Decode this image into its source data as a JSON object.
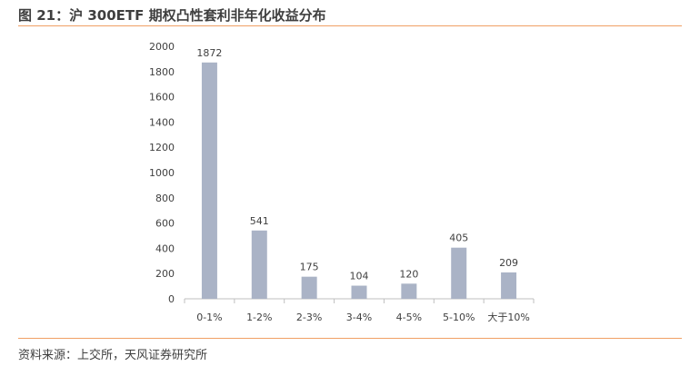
{
  "figure": {
    "title": "图 21：沪 300ETF 期权凸性套利非年化收益分布",
    "source": "资料来源：上交所，天风证券研究所"
  },
  "colors": {
    "bar": "#aab3c6",
    "rule": "#f0a064",
    "axis": "#bfbfbf"
  },
  "chart_data": {
    "type": "bar",
    "categories": [
      "0-1%",
      "1-2%",
      "2-3%",
      "3-4%",
      "4-5%",
      "5-10%",
      "大于10%"
    ],
    "values": [
      1872,
      541,
      175,
      104,
      120,
      405,
      209
    ],
    "ylim": [
      0,
      2000
    ],
    "yticks": [
      0,
      200,
      400,
      600,
      800,
      1000,
      1200,
      1400,
      1600,
      1800,
      2000
    ],
    "grid": false,
    "legend": "none"
  }
}
